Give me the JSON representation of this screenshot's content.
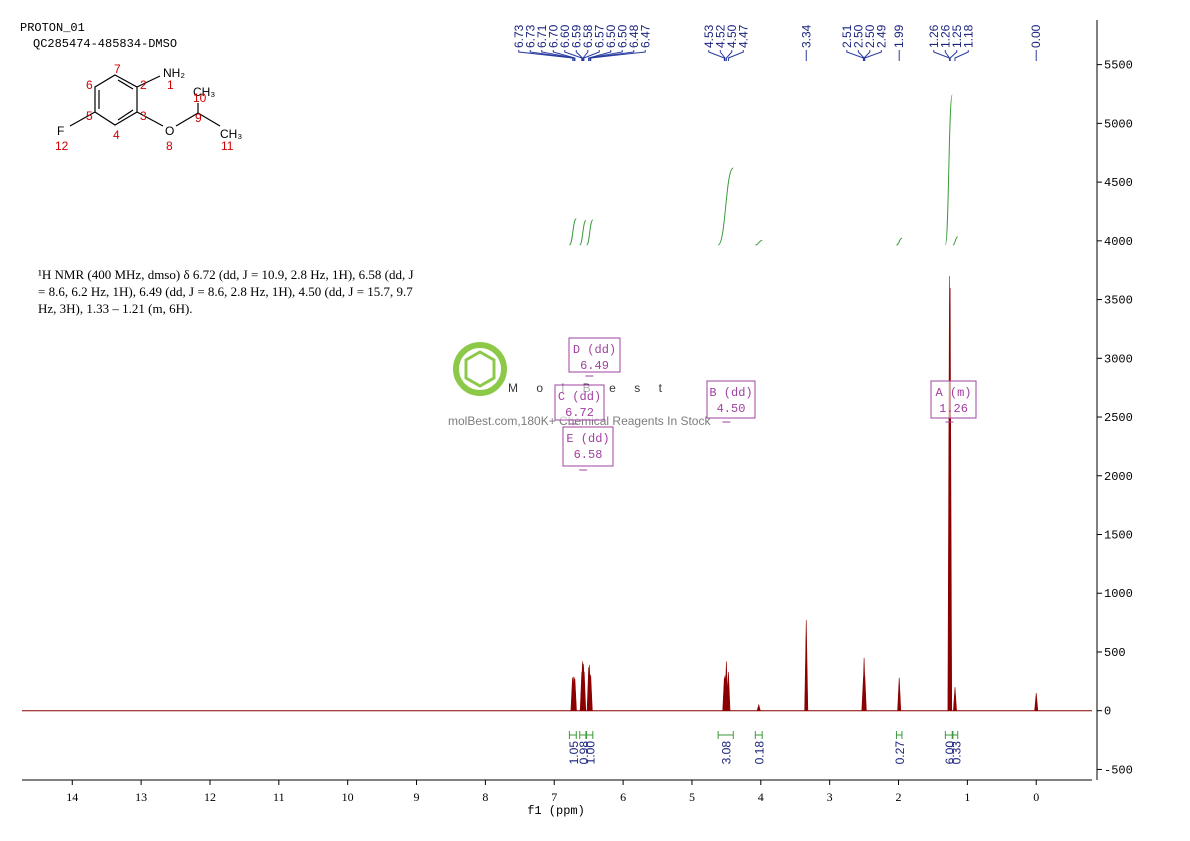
{
  "chart_data": {
    "type": "spectrum",
    "header": [
      "PROTON_01",
      "QC285474-485834-DMSO"
    ],
    "description": "¹H NMR (400 MHz, dmso) δ 6.72 (dd, J = 10.9, 2.8 Hz, 1H), 6.58 (dd, J = 8.6, 6.2 Hz, 1H), 6.49 (dd, J = 8.6, 2.8 Hz, 1H), 4.50 (dd, J = 15.7, 9.7 Hz, 3H), 1.33 – 1.21 (m, 6H).",
    "molecule": {
      "groups": [
        "NH₂",
        "CH₃",
        "O",
        "CH₃",
        "F"
      ],
      "atom_numbers": [
        "7",
        "6",
        "2",
        "1",
        "5",
        "3",
        "10",
        "9",
        "4",
        "8",
        "11",
        "12"
      ]
    },
    "watermark": [
      "MolBest",
      "molBest.com,180K+ Chemical Reagents In Stock"
    ],
    "xlabel": "f1 (ppm)",
    "xlim": [
      14.73,
      -0.81
    ],
    "xticks": [
      14,
      13,
      12,
      11,
      10,
      9,
      8,
      7,
      6,
      5,
      4,
      3,
      2,
      1,
      0
    ],
    "ylim": [
      -590,
      5880
    ],
    "yticks": [
      -500,
      0,
      500,
      1000,
      1500,
      2000,
      2500,
      3000,
      3500,
      4000,
      4500,
      5000,
      5500
    ],
    "series": [
      {
        "color": "#8b0000",
        "x": [
          6.735,
          6.725,
          6.71,
          6.7,
          6.6,
          6.59,
          6.575,
          6.565,
          6.5,
          6.49,
          6.48,
          6.47,
          4.53,
          4.52,
          4.5,
          4.47,
          4.03,
          3.34,
          2.51,
          2.5,
          2.49,
          1.99,
          1.26,
          1.25,
          1.18,
          0.0
        ],
        "values": [
          280,
          290,
          285,
          270,
          330,
          420,
          400,
          330,
          370,
          390,
          310,
          300,
          280,
          300,
          420,
          330,
          50,
          770,
          280,
          450,
          300,
          280,
          3700,
          3600,
          200,
          150
        ]
      }
    ],
    "peak_labels": [
      6.73,
      6.73,
      6.71,
      {
        "value": 6.7,
        "label": "6.70"
      },
      {
        "value": 6.6,
        "label": "6.60"
      },
      6.59,
      6.58,
      6.57,
      {
        "value": 6.5,
        "label": "6.50"
      },
      {
        "value": 6.5,
        "label": "6.50"
      },
      6.48,
      6.47,
      4.53,
      4.52,
      {
        "value": 4.5,
        "label": "4.50"
      },
      4.47,
      3.34,
      2.51,
      {
        "value": 2.5,
        "label": "2.50"
      },
      {
        "value": 2.5,
        "label": "2.50"
      },
      2.49,
      1.99,
      1.26,
      1.26,
      1.25,
      1.18,
      {
        "value": 0,
        "label": "0.00"
      }
    ],
    "integrals": [
      {
        "from": 6.78,
        "to": 6.68,
        "value": 1.05
      },
      {
        "from": 6.63,
        "to": 6.54,
        "value": 0.98
      },
      {
        "from": 6.53,
        "to": 6.44,
        "value": 1,
        "label": "1.00"
      },
      {
        "from": 4.62,
        "to": 4.4,
        "value": 3.08
      },
      {
        "from": 4.08,
        "to": 3.98,
        "value": 0.18
      },
      {
        "from": 2.03,
        "to": 1.95,
        "value": 0.27
      },
      {
        "from": 1.32,
        "to": 1.22,
        "value": 6,
        "label": "6.00"
      },
      {
        "from": 1.21,
        "to": 1.14,
        "value": 0.33
      }
    ],
    "multiplets": [
      {
        "name": "A (m)",
        "shift": 1.26
      },
      {
        "name": "B (dd)",
        "shift": {
          "value": 4.5,
          "label": "4.50"
        }
      },
      {
        "name": "C (dd)",
        "shift": 6.72
      },
      {
        "name": "D (dd)",
        "shift": 6.49
      },
      {
        "name": "E (dd)",
        "shift": 6.58
      }
    ]
  }
}
